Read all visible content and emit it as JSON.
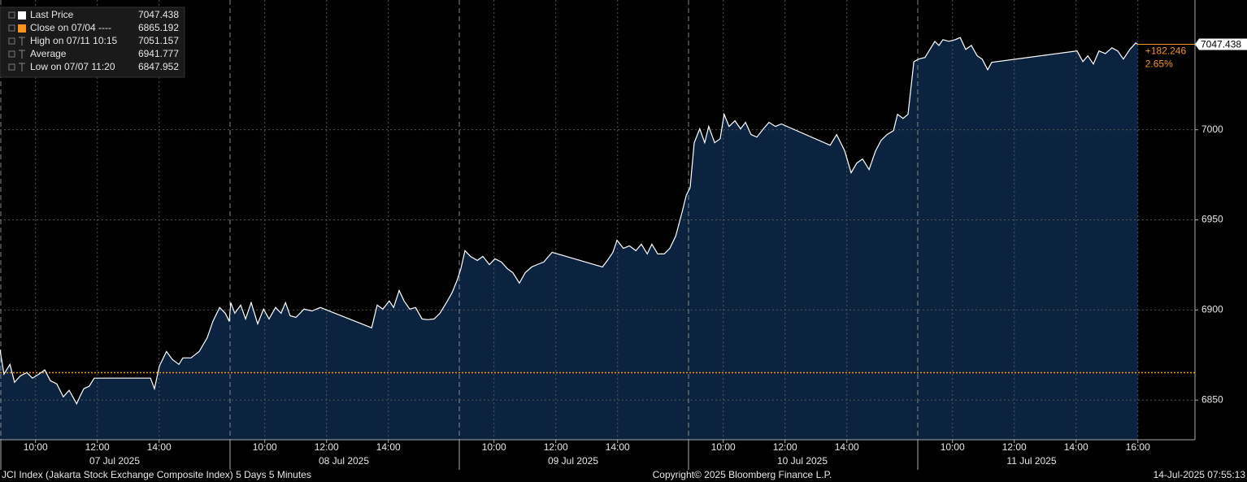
{
  "chart_data": {
    "type": "line",
    "color": "#ffffff",
    "area_color": "#0c2340",
    "grid": true,
    "ylim": [
      6828,
      7072
    ],
    "yticks": [
      6850,
      6900,
      6950,
      7000
    ],
    "xlim": [
      8.85,
      16.27
    ],
    "reference": {
      "value": 6865.192,
      "color": "#f7941d"
    },
    "legend": [
      {
        "label": "Last Price",
        "value": 7047.438,
        "color": "#ffffff"
      },
      {
        "label": "Close on 07/04 ----",
        "value": 6865.192,
        "color": "#f7941d"
      },
      {
        "label": "High on 07/11 10:15",
        "value": 7051.157
      },
      {
        "label": "Average",
        "value": 6941.777
      },
      {
        "label": "Low on 07/07 11:20",
        "value": 6847.952
      }
    ],
    "change": {
      "value": 182.246,
      "label": "+182.246"
    },
    "change_pct": {
      "value": 2.65,
      "label": "2.65%"
    },
    "days": [
      {
        "label": "07 Jul 2025",
        "xticks": [
          {
            "value": 10,
            "label": "10:00"
          },
          {
            "value": 12,
            "label": "12:00"
          },
          {
            "value": 14,
            "label": "14:00"
          }
        ],
        "x": [
          8.85,
          8.98,
          9.17,
          9.32,
          9.51,
          9.72,
          9.9,
          10.11,
          10.3,
          10.48,
          10.69,
          10.9,
          11.09,
          11.33,
          11.43,
          11.56,
          11.74,
          11.9,
          13.72,
          13.85,
          14.01,
          14.24,
          14.43,
          14.64,
          14.77,
          15.03,
          15.3,
          15.56,
          15.74,
          15.96,
          16.14,
          16.27
        ],
        "values": [
          6877.9,
          6864.4,
          6869.8,
          6859.9,
          6863.5,
          6865.3,
          6862.2,
          6864.4,
          6866.7,
          6860.8,
          6859.0,
          6851.8,
          6855.4,
          6847.95,
          6851.8,
          6856.3,
          6857.7,
          6862.2,
          6862.2,
          6856.3,
          6868.9,
          6877.0,
          6872.5,
          6869.8,
          6873.4,
          6873.4,
          6877.0,
          6884.7,
          6893.7,
          6901.4,
          6898.2,
          6893.7
        ]
      },
      {
        "label": "08 Jul 2025",
        "xticks": [
          {
            "value": 10,
            "label": "10:00"
          },
          {
            "value": 12,
            "label": "12:00"
          },
          {
            "value": 14,
            "label": "14:00"
          }
        ],
        "x": [
          8.9,
          9.03,
          9.22,
          9.38,
          9.56,
          9.77,
          9.96,
          10.14,
          10.35,
          10.53,
          10.67,
          10.82,
          11.01,
          11.27,
          11.53,
          11.8,
          13.46,
          13.64,
          13.82,
          14.03,
          14.17,
          14.35,
          14.51,
          14.69,
          14.88,
          15.09,
          15.27,
          15.48,
          15.67,
          15.88,
          16.06,
          16.22
        ],
        "values": [
          6904.1,
          6898.2,
          6902.7,
          6895.0,
          6904.1,
          6892.3,
          6900.5,
          6895.0,
          6901.4,
          6898.2,
          6904.1,
          6896.8,
          6895.9,
          6900.5,
          6899.5,
          6901.4,
          6890.1,
          6902.7,
          6900.5,
          6905.0,
          6901.4,
          6910.8,
          6905.0,
          6900.5,
          6901.4,
          6895.0,
          6894.6,
          6895.0,
          6898.2,
          6904.1,
          6909.5,
          6916.2
        ]
      },
      {
        "label": "09 Jul 2025",
        "xticks": [
          {
            "value": 10,
            "label": "10:00"
          },
          {
            "value": 12,
            "label": "12:00"
          },
          {
            "value": 14,
            "label": "14:00"
          }
        ],
        "x": [
          8.93,
          9.06,
          9.24,
          9.46,
          9.64,
          9.85,
          10.03,
          10.24,
          10.43,
          10.61,
          10.82,
          11.01,
          11.22,
          11.4,
          11.61,
          11.88,
          13.51,
          13.67,
          13.85,
          13.98,
          14.19,
          14.38,
          14.59,
          14.77,
          14.96,
          15.11,
          15.3,
          15.51,
          15.69,
          15.88,
          16.09,
          16.22
        ],
        "values": [
          6923.0,
          6932.9,
          6929.7,
          6927.5,
          6929.7,
          6925.2,
          6928.4,
          6926.6,
          6923.0,
          6920.7,
          6914.9,
          6920.7,
          6923.9,
          6925.2,
          6926.6,
          6932.0,
          6923.9,
          6927.5,
          6932.0,
          6938.7,
          6934.2,
          6935.6,
          6932.9,
          6936.5,
          6931.1,
          6936.5,
          6931.1,
          6931.1,
          6934.2,
          6941.0,
          6954.5,
          6963.5
        ]
      },
      {
        "label": "10 Jul 2025",
        "xticks": [
          {
            "value": 10,
            "label": "10:00"
          },
          {
            "value": 12,
            "label": "12:00"
          },
          {
            "value": 14,
            "label": "14:00"
          }
        ],
        "x": [
          8.93,
          9.06,
          9.24,
          9.4,
          9.53,
          9.72,
          9.9,
          10.03,
          10.19,
          10.38,
          10.56,
          10.72,
          10.9,
          11.09,
          11.3,
          11.48,
          11.69,
          11.88,
          13.46,
          13.67,
          13.93,
          14.14,
          14.32,
          14.51,
          14.72,
          14.93,
          15.11,
          15.3,
          15.51,
          15.64,
          15.82,
          15.98,
          16.17
        ],
        "values": [
          6968.0,
          6992.8,
          7000.5,
          6992.8,
          7001.8,
          6992.8,
          6995.0,
          7008.6,
          7001.8,
          7005.0,
          7000.5,
          7004.1,
          6997.3,
          6995.9,
          7000.5,
          7004.1,
          7001.8,
          7003.2,
          6991.4,
          6997.3,
          6988.3,
          6976.1,
          6981.5,
          6983.8,
          6977.9,
          6988.3,
          6994.1,
          6997.3,
          6999.5,
          7008.6,
          7006.3,
          7008.6,
          7037.8
        ]
      },
      {
        "label": "11 Jul 2025",
        "xticks": [
          {
            "value": 10,
            "label": "10:00"
          },
          {
            "value": 12,
            "label": "12:00"
          },
          {
            "value": 14,
            "label": "14:00"
          },
          {
            "value": 16,
            "label": "16:00"
          }
        ],
        "x": [
          8.9,
          9.11,
          9.3,
          9.43,
          9.56,
          9.69,
          9.88,
          10.09,
          10.25,
          10.43,
          10.61,
          10.8,
          10.96,
          11.14,
          11.27,
          14.03,
          14.22,
          14.38,
          14.56,
          14.74,
          14.95,
          15.16,
          15.35,
          15.53,
          15.74,
          15.93,
          16.0
        ],
        "values": [
          7039.2,
          7040.1,
          7045.5,
          7049.0,
          7046.8,
          7050.0,
          7049.1,
          7050.0,
          7051.157,
          7044.6,
          7046.8,
          7041.0,
          7039.2,
          7033.3,
          7037.4,
          7043.7,
          7037.8,
          7041.0,
          7036.5,
          7043.7,
          7042.3,
          7045.5,
          7043.7,
          7039.2,
          7044.6,
          7048.2,
          7047.438
        ]
      }
    ]
  },
  "footer": {
    "left": "JCI Index (Jakarta Stock Exchange Composite Index) 5 Days 5 Minutes",
    "center": "Copyright© 2025 Bloomberg Finance L.P.",
    "right": "14-Jul-2025 07:55:13"
  }
}
